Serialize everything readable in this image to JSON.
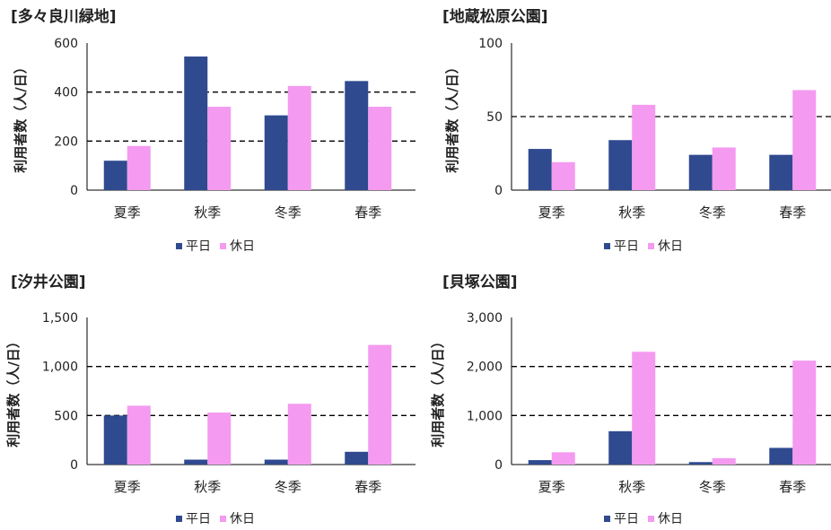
{
  "legend": {
    "weekday": "平日",
    "holiday": "休日"
  },
  "colors": {
    "weekday": "#2f4a8f",
    "holiday": "#f49af0"
  },
  "chart_data": [
    {
      "type": "bar",
      "title": "[多々良川緑地]",
      "ylabel": "利用者数（人/日）",
      "categories": [
        "夏季",
        "秋季",
        "冬季",
        "春季"
      ],
      "ylim": [
        0,
        600
      ],
      "yticks": [
        "0",
        "200",
        "400",
        "600"
      ],
      "ytick_values": [
        0,
        200,
        400,
        600
      ],
      "series": [
        {
          "name": "平日",
          "values": [
            120,
            545,
            305,
            445
          ]
        },
        {
          "name": "休日",
          "values": [
            180,
            340,
            425,
            340
          ]
        }
      ]
    },
    {
      "type": "bar",
      "title": "[地蔵松原公園]",
      "ylabel": "利用者数（人/日）",
      "categories": [
        "夏季",
        "秋季",
        "冬季",
        "春季"
      ],
      "ylim": [
        0,
        100
      ],
      "yticks": [
        "0",
        "50",
        "100"
      ],
      "ytick_values": [
        0,
        50,
        100
      ],
      "series": [
        {
          "name": "平日",
          "values": [
            28,
            34,
            24,
            24
          ]
        },
        {
          "name": "休日",
          "values": [
            19,
            58,
            29,
            68
          ]
        }
      ]
    },
    {
      "type": "bar",
      "title": "[汐井公園]",
      "ylabel": "利用者数（人/日）",
      "categories": [
        "夏季",
        "秋季",
        "冬季",
        "春季"
      ],
      "ylim": [
        0,
        1500
      ],
      "yticks": [
        "0",
        "500",
        "1,000",
        "1,500"
      ],
      "ytick_values": [
        0,
        500,
        1000,
        1500
      ],
      "series": [
        {
          "name": "平日",
          "values": [
            500,
            50,
            50,
            130
          ]
        },
        {
          "name": "休日",
          "values": [
            600,
            530,
            620,
            1220
          ]
        }
      ]
    },
    {
      "type": "bar",
      "title": "[貝塚公園]",
      "ylabel": "利用者数（人/日）",
      "categories": [
        "夏季",
        "秋季",
        "冬季",
        "春季"
      ],
      "ylim": [
        0,
        3000
      ],
      "yticks": [
        "0",
        "1,000",
        "2,000",
        "3,000"
      ],
      "ytick_values": [
        0,
        1000,
        2000,
        3000
      ],
      "series": [
        {
          "name": "平日",
          "values": [
            90,
            680,
            50,
            340
          ]
        },
        {
          "name": "休日",
          "values": [
            250,
            2300,
            130,
            2120
          ]
        }
      ]
    }
  ]
}
